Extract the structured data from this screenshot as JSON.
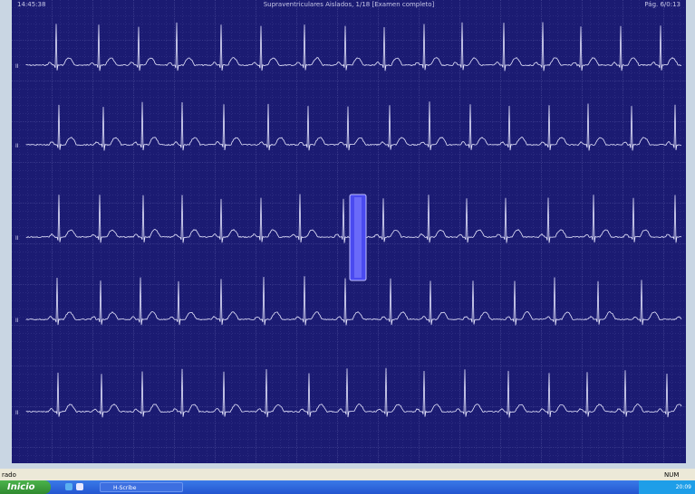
{
  "header": {
    "time": "14:45:38",
    "title": "Supraventriculares Aislados, 1/18 [Examen completo]",
    "page": "Pág. 6/0:13"
  },
  "leads": [
    "II",
    "II",
    "II",
    "II",
    "II"
  ],
  "status": {
    "left": "rado",
    "right": "NUM"
  },
  "taskbar": {
    "start": "Inicio",
    "app": "H-Scribe",
    "clock": "20:09"
  }
}
